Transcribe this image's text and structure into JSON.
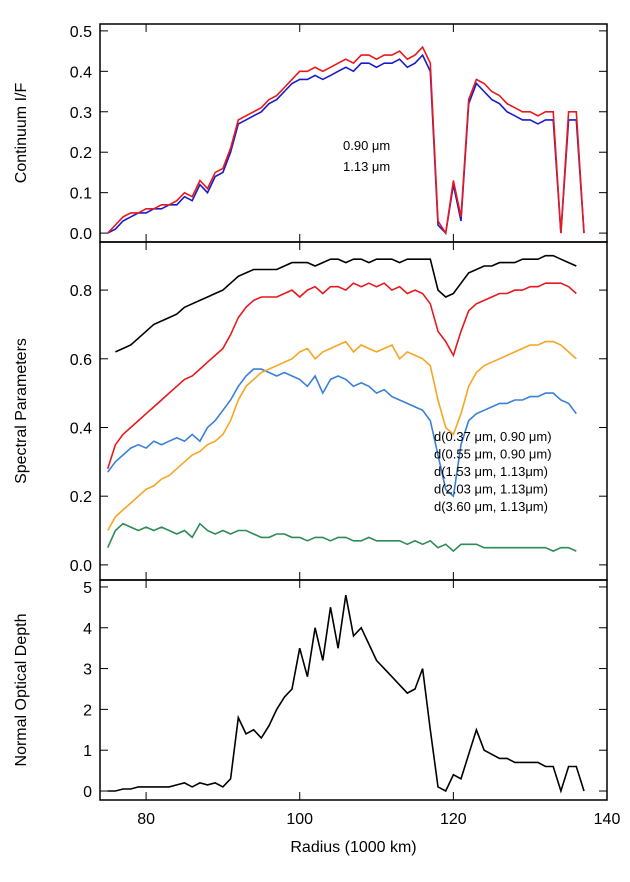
{
  "chart_data": [
    {
      "type": "line",
      "ylabel": "Continuum I/F",
      "x": [
        75,
        76,
        77,
        78,
        79,
        80,
        81,
        82,
        83,
        84,
        85,
        86,
        87,
        88,
        89,
        90,
        91,
        92,
        93,
        94,
        95,
        96,
        97,
        98,
        99,
        100,
        101,
        102,
        103,
        104,
        105,
        106,
        107,
        108,
        109,
        110,
        111,
        112,
        113,
        114,
        115,
        116,
        117,
        118,
        119,
        120,
        121,
        122,
        123,
        124,
        125,
        126,
        127,
        128,
        129,
        130,
        131,
        132,
        133,
        134,
        135,
        136,
        137
      ],
      "xlim": [
        74,
        140
      ],
      "xticks": [
        80,
        100,
        120,
        140
      ],
      "ylim": [
        -0.022,
        0.517
      ],
      "yticks": [
        {
          "value": 0,
          "label": "0.0"
        },
        0.1,
        0.2,
        0.3,
        0.4,
        0.5
      ],
      "series": [
        {
          "name": "0.90 μm",
          "color": "#1a1acc",
          "values": [
            0.0,
            0.01,
            0.03,
            0.04,
            0.05,
            0.05,
            0.06,
            0.06,
            0.07,
            0.07,
            0.09,
            0.08,
            0.12,
            0.1,
            0.14,
            0.15,
            0.2,
            0.27,
            0.28,
            0.29,
            0.3,
            0.32,
            0.33,
            0.35,
            0.37,
            0.38,
            0.38,
            0.39,
            0.38,
            0.39,
            0.4,
            0.41,
            0.4,
            0.42,
            0.42,
            0.41,
            0.42,
            0.42,
            0.43,
            0.41,
            0.42,
            0.44,
            0.4,
            0.02,
            0.0,
            0.12,
            0.03,
            0.32,
            0.37,
            0.35,
            0.33,
            0.32,
            0.3,
            0.29,
            0.28,
            0.28,
            0.27,
            0.28,
            0.28,
            0.0,
            0.28,
            0.28,
            0.0
          ]
        },
        {
          "name": "1.13 μm",
          "color": "#e8191c",
          "values": [
            0.0,
            0.02,
            0.04,
            0.05,
            0.05,
            0.06,
            0.06,
            0.07,
            0.07,
            0.08,
            0.1,
            0.09,
            0.13,
            0.11,
            0.15,
            0.16,
            0.21,
            0.28,
            0.29,
            0.3,
            0.31,
            0.33,
            0.34,
            0.36,
            0.38,
            0.4,
            0.4,
            0.41,
            0.4,
            0.41,
            0.42,
            0.43,
            0.42,
            0.44,
            0.44,
            0.43,
            0.44,
            0.44,
            0.45,
            0.43,
            0.44,
            0.46,
            0.42,
            0.03,
            0.0,
            0.13,
            0.04,
            0.33,
            0.38,
            0.37,
            0.35,
            0.34,
            0.32,
            0.31,
            0.3,
            0.3,
            0.29,
            0.3,
            0.3,
            0.0,
            0.3,
            0.3,
            0.0
          ]
        }
      ]
    },
    {
      "type": "line",
      "ylabel": "Spectral Parameters",
      "x": [
        75,
        76,
        77,
        78,
        79,
        80,
        81,
        82,
        83,
        84,
        85,
        86,
        87,
        88,
        89,
        90,
        91,
        92,
        93,
        94,
        95,
        96,
        97,
        98,
        99,
        100,
        101,
        102,
        103,
        104,
        105,
        106,
        107,
        108,
        109,
        110,
        111,
        112,
        113,
        114,
        115,
        116,
        117,
        118,
        119,
        120,
        121,
        122,
        123,
        124,
        125,
        126,
        127,
        128,
        129,
        130,
        131,
        132,
        133,
        134,
        135,
        136,
        137
      ],
      "xlim": [
        74,
        140
      ],
      "xticks": [
        80,
        100,
        120,
        140
      ],
      "ylim": [
        -0.044,
        0.94
      ],
      "yticks": [
        {
          "value": 0,
          "label": "0.0"
        },
        0.2,
        0.4,
        0.6,
        0.8
      ],
      "series": [
        {
          "name": "d(0.37 μm, 0.90 μm)",
          "color": "#3a80d8",
          "values": [
            0.27,
            0.3,
            0.32,
            0.34,
            0.35,
            0.34,
            0.36,
            0.35,
            0.36,
            0.37,
            0.36,
            0.38,
            0.36,
            0.4,
            0.42,
            0.45,
            0.48,
            0.52,
            0.55,
            0.57,
            0.57,
            0.56,
            0.55,
            0.56,
            0.55,
            0.54,
            0.52,
            0.55,
            0.5,
            0.54,
            0.55,
            0.54,
            0.52,
            0.53,
            0.52,
            0.5,
            0.51,
            0.49,
            0.48,
            0.47,
            0.46,
            0.45,
            0.42,
            0.32,
            0.22,
            0.2,
            0.35,
            0.42,
            0.44,
            0.45,
            0.46,
            0.47,
            0.47,
            0.48,
            0.48,
            0.49,
            0.49,
            0.5,
            0.5,
            0.48,
            0.47,
            0.44,
            null
          ]
        },
        {
          "name": "d(0.55 μm, 0.90 μm)",
          "color": "#2e8b57",
          "values": [
            0.05,
            0.1,
            0.12,
            0.11,
            0.1,
            0.11,
            0.1,
            0.11,
            0.1,
            0.09,
            0.1,
            0.08,
            0.12,
            0.1,
            0.09,
            0.1,
            0.09,
            0.1,
            0.1,
            0.09,
            0.08,
            0.08,
            0.09,
            0.09,
            0.08,
            0.08,
            0.07,
            0.08,
            0.08,
            0.07,
            0.08,
            0.08,
            0.07,
            0.07,
            0.08,
            0.07,
            0.07,
            0.07,
            0.07,
            0.06,
            0.07,
            0.06,
            0.07,
            0.05,
            0.06,
            0.04,
            0.06,
            0.06,
            0.06,
            0.05,
            0.05,
            0.05,
            0.05,
            0.05,
            0.05,
            0.05,
            0.05,
            0.05,
            0.04,
            0.05,
            0.05,
            0.04,
            null
          ]
        },
        {
          "name": "d(1.53 μm, 1.13μm)",
          "color": "#f5a623",
          "values": [
            0.1,
            0.14,
            0.16,
            0.18,
            0.2,
            0.22,
            0.23,
            0.25,
            0.26,
            0.28,
            0.3,
            0.32,
            0.33,
            0.35,
            0.36,
            0.38,
            0.42,
            0.48,
            0.52,
            0.54,
            0.56,
            0.57,
            0.58,
            0.59,
            0.6,
            0.62,
            0.63,
            0.6,
            0.62,
            0.63,
            0.64,
            0.65,
            0.62,
            0.64,
            0.63,
            0.62,
            0.63,
            0.64,
            0.6,
            0.62,
            0.61,
            0.6,
            0.58,
            0.48,
            0.4,
            0.38,
            0.44,
            0.52,
            0.56,
            0.58,
            0.59,
            0.6,
            0.61,
            0.62,
            0.63,
            0.64,
            0.64,
            0.65,
            0.65,
            0.64,
            0.62,
            0.6,
            null
          ]
        },
        {
          "name": "d(2.03 μm, 1.13μm)",
          "color": "#e8191c",
          "values": [
            0.28,
            0.35,
            0.38,
            0.4,
            0.42,
            0.44,
            0.46,
            0.48,
            0.5,
            0.52,
            0.54,
            0.55,
            0.57,
            0.59,
            0.61,
            0.63,
            0.67,
            0.72,
            0.75,
            0.77,
            0.78,
            0.78,
            0.78,
            0.79,
            0.8,
            0.78,
            0.8,
            0.81,
            0.79,
            0.81,
            0.81,
            0.8,
            0.82,
            0.81,
            0.82,
            0.81,
            0.82,
            0.8,
            0.81,
            0.79,
            0.8,
            0.79,
            0.76,
            0.68,
            0.65,
            0.61,
            0.68,
            0.74,
            0.76,
            0.77,
            0.78,
            0.79,
            0.79,
            0.8,
            0.8,
            0.81,
            0.81,
            0.82,
            0.82,
            0.82,
            0.81,
            0.79,
            null
          ]
        },
        {
          "name": "d(3.60 μm, 1.13μm)",
          "color": "#000000",
          "values": [
            null,
            0.62,
            0.63,
            0.64,
            0.66,
            0.68,
            0.7,
            0.71,
            0.72,
            0.73,
            0.75,
            0.76,
            0.77,
            0.78,
            0.79,
            0.8,
            0.82,
            0.84,
            0.85,
            0.86,
            0.86,
            0.86,
            0.86,
            0.87,
            0.88,
            0.88,
            0.88,
            0.87,
            0.88,
            0.89,
            0.89,
            0.88,
            0.89,
            0.89,
            0.88,
            0.89,
            0.89,
            0.89,
            0.88,
            0.89,
            0.89,
            0.89,
            0.89,
            0.8,
            0.78,
            0.79,
            0.82,
            0.85,
            0.86,
            0.87,
            0.87,
            0.88,
            0.88,
            0.88,
            0.89,
            0.89,
            0.89,
            0.9,
            0.9,
            0.89,
            0.88,
            0.87,
            null
          ]
        }
      ]
    },
    {
      "type": "line",
      "ylabel": "Normal Optical Depth",
      "xlabel": "Radius (1000 km)",
      "x": [
        75,
        76,
        77,
        78,
        79,
        80,
        81,
        82,
        83,
        84,
        85,
        86,
        87,
        88,
        89,
        90,
        91,
        92,
        93,
        94,
        95,
        96,
        97,
        98,
        99,
        100,
        101,
        102,
        103,
        104,
        105,
        106,
        107,
        108,
        109,
        110,
        111,
        112,
        113,
        114,
        115,
        116,
        117,
        118,
        119,
        120,
        121,
        122,
        123,
        124,
        125,
        126,
        127,
        128,
        129,
        130,
        131,
        132,
        133,
        134,
        135,
        136,
        137
      ],
      "xlim": [
        74,
        140
      ],
      "xticks": [
        80,
        100,
        120,
        140
      ],
      "ylim": [
        -0.22,
        5.17
      ],
      "yticks": [
        0,
        1,
        2,
        3,
        4,
        5
      ],
      "series": [
        {
          "color": "#000000",
          "values": [
            0,
            0,
            0.05,
            0.05,
            0.1,
            0.1,
            0.1,
            0.1,
            0.1,
            0.15,
            0.2,
            0.1,
            0.2,
            0.15,
            0.2,
            0.1,
            0.3,
            1.8,
            1.4,
            1.5,
            1.3,
            1.6,
            2.0,
            2.3,
            2.5,
            3.5,
            2.8,
            4.0,
            3.2,
            4.5,
            3.5,
            4.8,
            3.8,
            4.0,
            3.6,
            3.2,
            3.0,
            2.8,
            2.6,
            2.4,
            2.5,
            3.0,
            1.5,
            0.1,
            0.0,
            0.4,
            0.3,
            0.9,
            1.5,
            1.0,
            0.9,
            0.8,
            0.8,
            0.7,
            0.7,
            0.7,
            0.7,
            0.6,
            0.6,
            0.0,
            0.6,
            0.6,
            0
          ]
        }
      ]
    }
  ]
}
